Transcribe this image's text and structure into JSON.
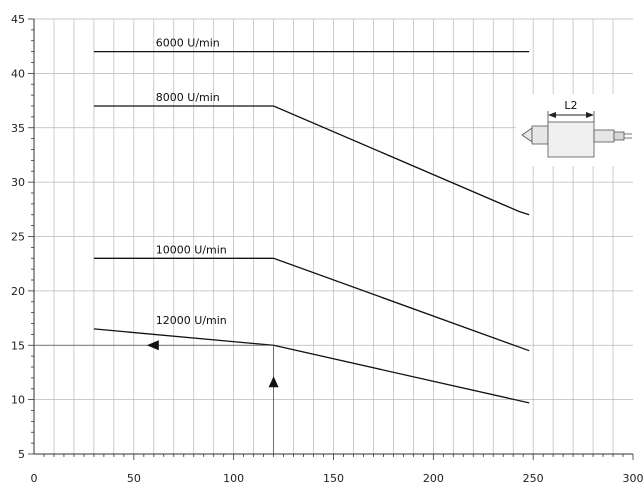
{
  "chart_data": {
    "type": "line",
    "title": "",
    "xlabel": "",
    "ylabel": "",
    "xlim": [
      0,
      300
    ],
    "ylim": [
      5,
      45
    ],
    "xticks": [
      0,
      50,
      100,
      150,
      200,
      250,
      300
    ],
    "yticks": [
      5,
      10,
      15,
      20,
      25,
      30,
      35,
      40,
      45
    ],
    "grid": true,
    "series": [
      {
        "name": "6000 U/min",
        "points": [
          [
            30,
            42
          ],
          [
            248,
            42
          ]
        ]
      },
      {
        "name": "8000 U/min",
        "points": [
          [
            30,
            37
          ],
          [
            120,
            37
          ],
          [
            243,
            27.3
          ],
          [
            248,
            27
          ]
        ]
      },
      {
        "name": "10000 U/min",
        "points": [
          [
            30,
            23
          ],
          [
            120,
            23
          ],
          [
            248,
            14.5
          ]
        ]
      },
      {
        "name": "12000 U/min",
        "points": [
          [
            30,
            16.5
          ],
          [
            120,
            15
          ],
          [
            248,
            9.7
          ]
        ]
      }
    ],
    "annotations": {
      "reading_x": 120,
      "reading_y": 15,
      "inset_label": "L2"
    }
  }
}
